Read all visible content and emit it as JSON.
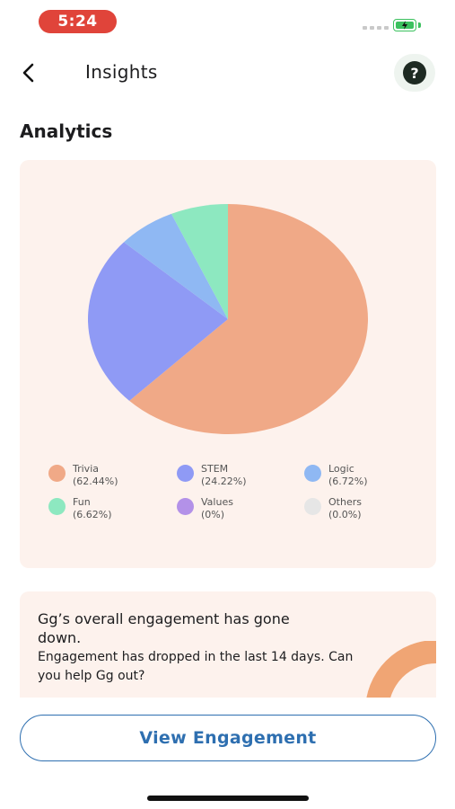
{
  "status_bar": {
    "time": "5:24"
  },
  "header": {
    "title": "Insights",
    "back_icon": "chevron-left-icon",
    "help_label": "?"
  },
  "section_title": "Analytics",
  "chart_data": {
    "type": "pie",
    "categories": [
      "Trivia",
      "STEM",
      "Logic",
      "Fun",
      "Values",
      "Others"
    ],
    "values": [
      62.44,
      24.22,
      6.72,
      6.62,
      0,
      0.0
    ],
    "value_labels": [
      "(62.44%)",
      "(24.22%)",
      "(6.72%)",
      "(6.62%)",
      "(0%)",
      "(0.0%)"
    ],
    "colors": [
      "#f0a987",
      "#8f9af5",
      "#8fb8f3",
      "#8de8c0",
      "#b391e8",
      "#e6e6e6"
    ],
    "legend_placement": "bottom"
  },
  "engagement": {
    "title": "Gg’s overall engagement has gone down.",
    "body": "Engagement has dropped in the last 14 days. Can you help Gg out?"
  },
  "cta": {
    "label": "View Engagement"
  }
}
